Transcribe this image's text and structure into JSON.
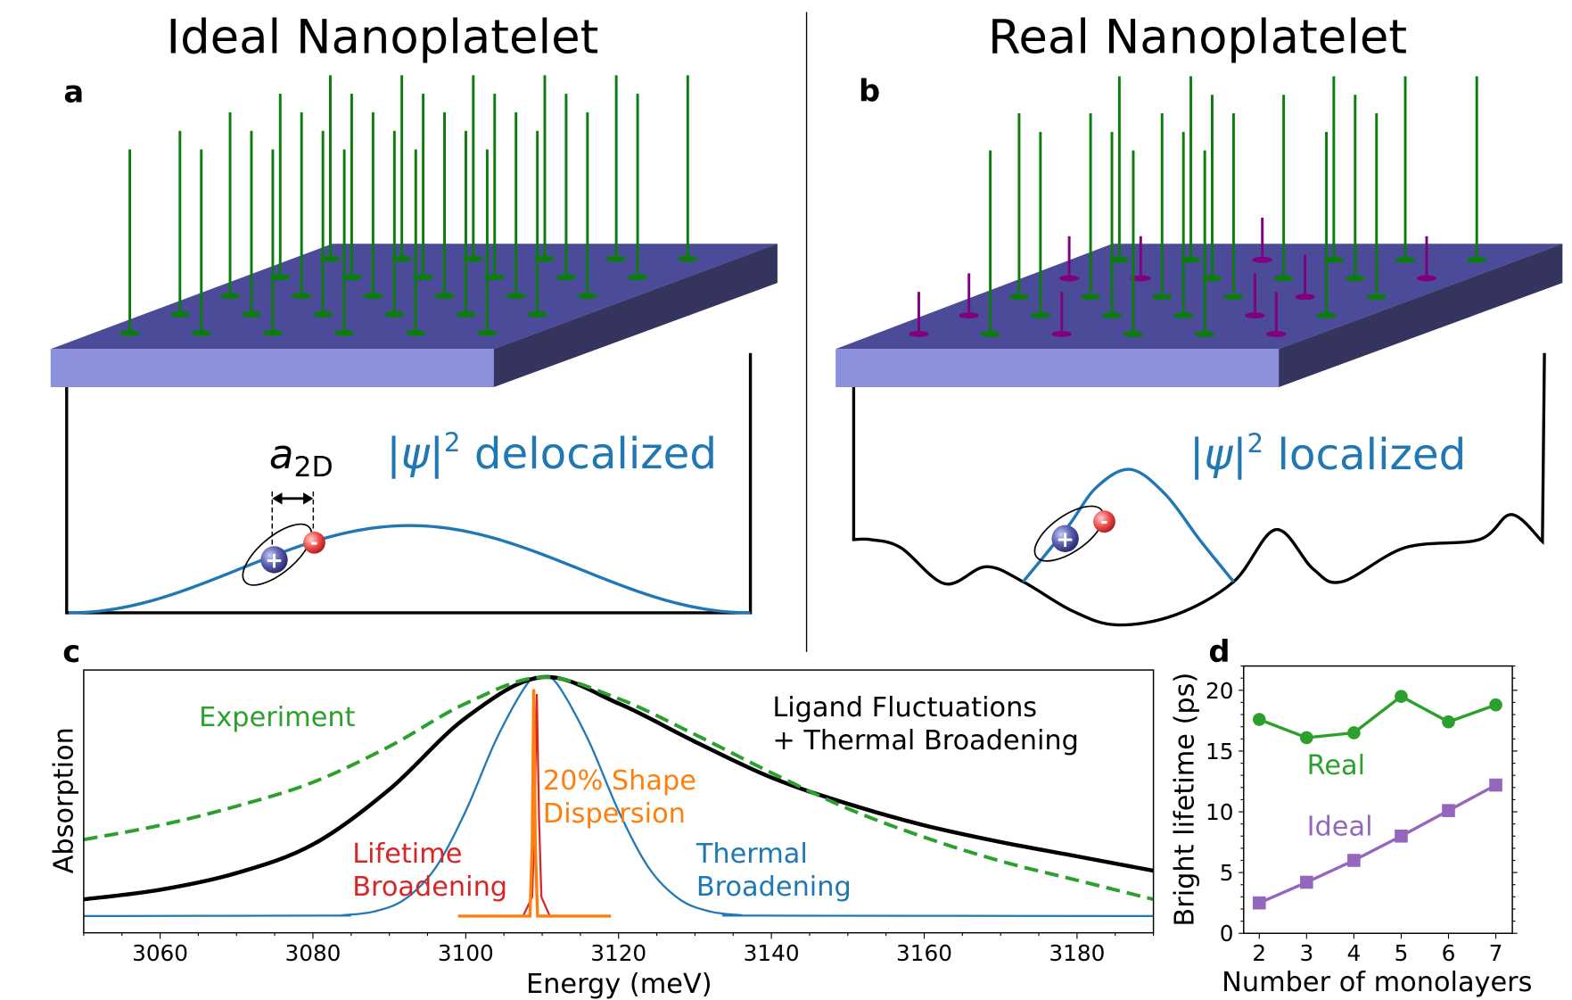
{
  "panel_a": {
    "letter": "a",
    "title": "Ideal Nanoplatelet",
    "bohr_radius_label": {
      "base": "a",
      "sub": "2D"
    },
    "psi_label": {
      "base": "|ψ|",
      "sup": "2",
      "text": " delocalized"
    },
    "hole_sign": "+",
    "electron_sign": "-"
  },
  "panel_b": {
    "letter": "b",
    "title": "Real Nanoplatelet",
    "psi_label": {
      "base": "|ψ|",
      "sup": "2",
      "text": " localized"
    },
    "hole_sign": "+",
    "electron_sign": "-"
  },
  "panel_c": {
    "letter": "c"
  },
  "panel_d": {
    "letter": "d"
  },
  "colors": {
    "slab_top": "#4b4b9a",
    "slab_front": "#8b8fdc",
    "slab_side": "#35345f",
    "ligand_long": "#0a7d0a",
    "ligand_short": "#800080",
    "wavefunction": "#1f77b4",
    "experiment": "#2ca02c",
    "ligand_thermal": "#000000",
    "thermal": "#1f77b4",
    "lifetime": "#d62728",
    "shape": "#ff7f0e",
    "real": "#2ca02c",
    "ideal": "#9467bd"
  },
  "chart_data": [
    {
      "panel": "c",
      "type": "line",
      "xlabel": "Energy (meV)",
      "ylabel": "Absorption",
      "xlim": [
        3050,
        3190
      ],
      "ylim": [
        -0.07,
        1.03
      ],
      "xticks": [
        3060,
        3080,
        3100,
        3120,
        3140,
        3160,
        3180
      ],
      "yticks": [],
      "grid": false,
      "series": [
        {
          "name": "Experiment",
          "label_lines": [
            "Experiment"
          ],
          "style": "dashed",
          "color": "#2ca02c",
          "x": [
            3050,
            3060,
            3070,
            3080,
            3090,
            3100,
            3110,
            3120,
            3130,
            3140,
            3150,
            3160,
            3170,
            3180,
            3190
          ],
          "y": [
            0.32,
            0.38,
            0.46,
            0.56,
            0.71,
            0.89,
            1.0,
            0.91,
            0.76,
            0.6,
            0.45,
            0.33,
            0.23,
            0.15,
            0.07
          ]
        },
        {
          "name": "Ligand Fluctuations + Thermal Broadening",
          "label_lines": [
            "Ligand Fluctuations",
            "+ Thermal Broadening"
          ],
          "style": "solid-thick",
          "color": "#000000",
          "x": [
            3050,
            3060,
            3070,
            3080,
            3090,
            3100,
            3110,
            3120,
            3130,
            3140,
            3150,
            3160,
            3170,
            3180,
            3190
          ],
          "y": [
            0.07,
            0.11,
            0.18,
            0.3,
            0.53,
            0.83,
            1.0,
            0.89,
            0.73,
            0.58,
            0.47,
            0.38,
            0.31,
            0.25,
            0.19
          ]
        },
        {
          "name": "Thermal Broadening",
          "label_lines": [
            "Thermal",
            "Broadening"
          ],
          "style": "solid",
          "color": "#1f77b4",
          "x": [
            3050,
            3082,
            3084,
            3088,
            3092,
            3096,
            3100,
            3104,
            3108,
            3110,
            3112,
            3116,
            3120,
            3124,
            3128,
            3132,
            3136,
            3138,
            3190
          ],
          "y": [
            0,
            0.002,
            0.004,
            0.019,
            0.07,
            0.2,
            0.44,
            0.74,
            0.97,
            1.0,
            0.97,
            0.74,
            0.44,
            0.2,
            0.07,
            0.019,
            0.004,
            0.002,
            0
          ]
        },
        {
          "name": "Lifetime Broadening",
          "label_lines": [
            "Lifetime",
            "Broadening"
          ],
          "style": "solid",
          "color": "#d62728",
          "x": [
            3107.5,
            3108.7,
            3109.0,
            3109.3,
            3109.6,
            3109.9,
            3111
          ],
          "y": [
            0,
            0.08,
            0.4,
            0.93,
            0.4,
            0.08,
            0
          ]
        },
        {
          "name": "20% Shape Dispersion",
          "label_lines": [
            "20% Shape",
            "Dispersion"
          ],
          "style": "solid",
          "color": "#ff7f0e",
          "x": [
            3099,
            3108.4,
            3108.7,
            3108.9,
            3109.1,
            3109.4,
            3119
          ],
          "y": [
            0,
            0,
            0.3,
            0.95,
            0.3,
            0,
            0
          ]
        }
      ]
    },
    {
      "panel": "d",
      "type": "line",
      "xlabel": "Number of monolayers",
      "ylabel": "Bright lifetime (ps)",
      "xlim": [
        1.67,
        7.35
      ],
      "ylim": [
        0,
        22
      ],
      "xticks": [
        2,
        3,
        4,
        5,
        6,
        7
      ],
      "yticks": [
        0,
        5,
        10,
        15,
        20
      ],
      "grid": false,
      "series": [
        {
          "name": "Real",
          "marker": "circle",
          "color": "#2ca02c",
          "x": [
            2,
            3,
            4,
            5,
            6,
            7
          ],
          "y": [
            17.6,
            16.1,
            16.5,
            19.5,
            17.4,
            18.8
          ]
        },
        {
          "name": "Ideal",
          "marker": "square",
          "color": "#9467bd",
          "x": [
            2,
            3,
            4,
            5,
            6,
            7
          ],
          "y": [
            2.5,
            4.2,
            6.0,
            8.0,
            10.1,
            12.2
          ]
        }
      ]
    }
  ]
}
